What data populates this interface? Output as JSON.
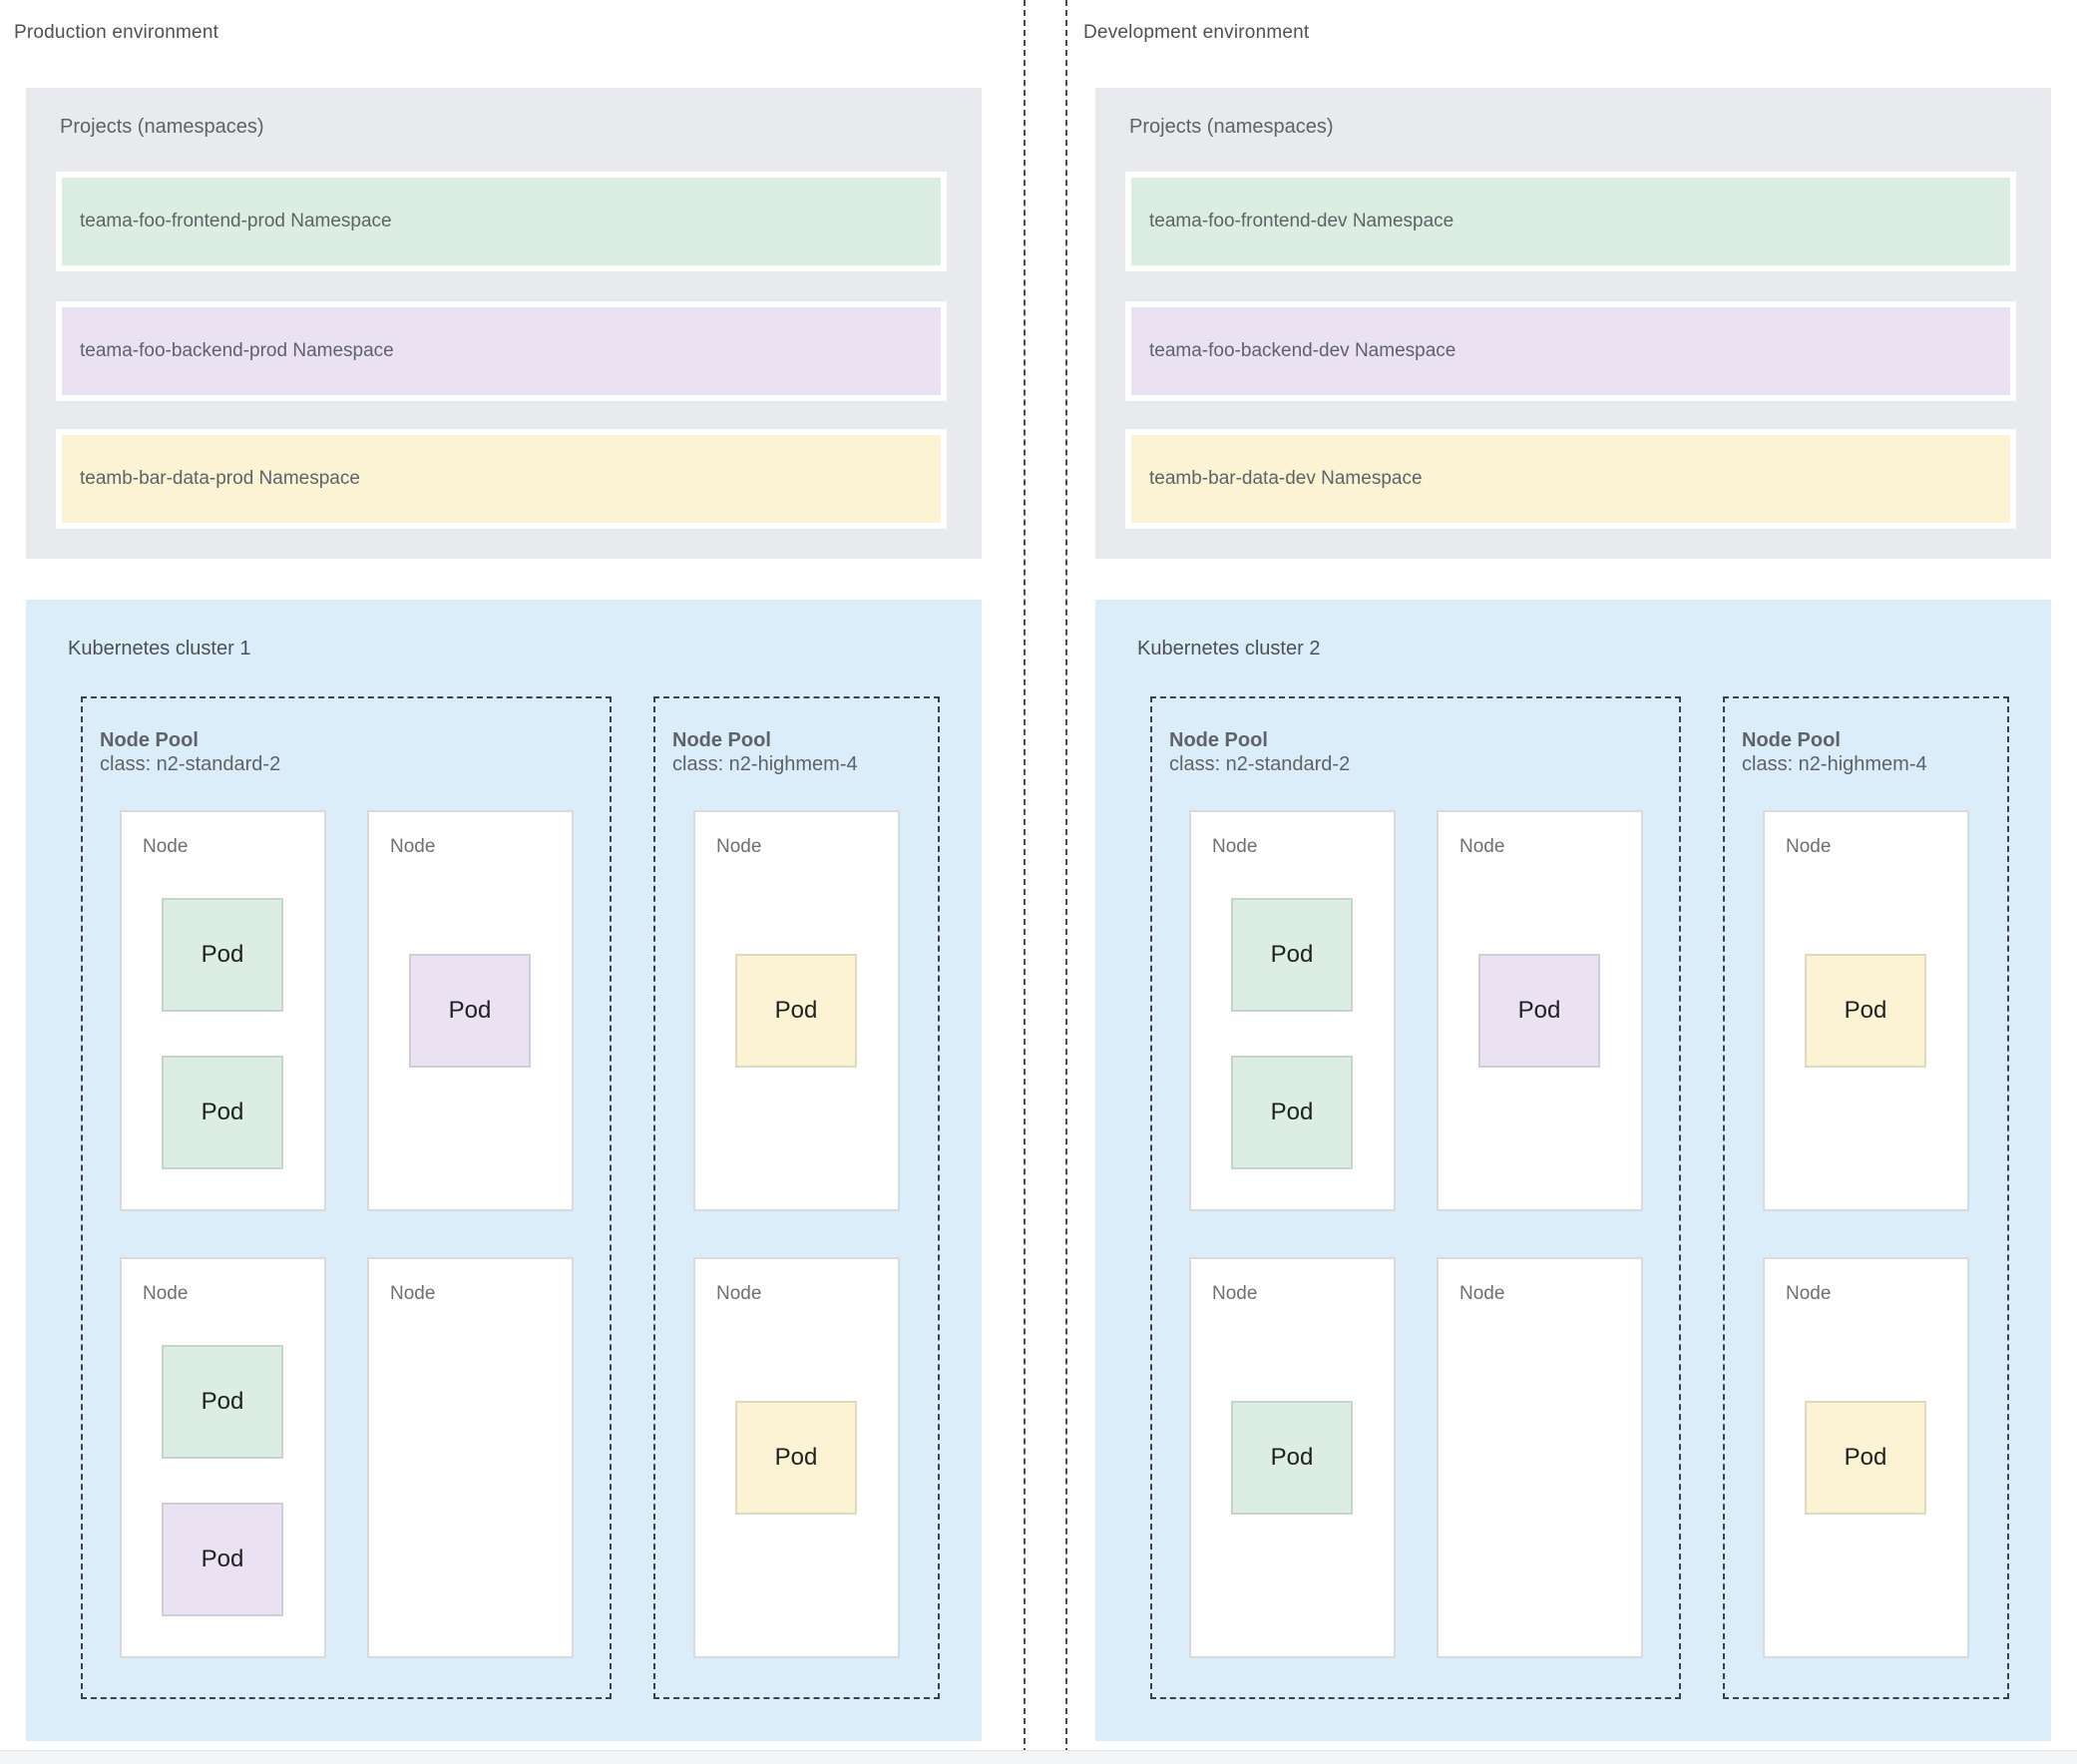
{
  "diagram": {
    "palette": {
      "projects_box_bg": "#e8eaed",
      "cluster_box_bg": "#daedf9",
      "frontend_green": "#dcede3",
      "backend_purple": "#eae1f3",
      "data_yellow": "#fcf3d4",
      "node_bg": "#ffffff",
      "dashed_border": "#3f4245",
      "text_gray": "#5f6368"
    },
    "environments": [
      {
        "label": "Production environment",
        "projects": {
          "title": "Projects (namespaces)",
          "namespaces": [
            {
              "label": "teama-foo-frontend-prod Namespace",
              "color": "#dcede3"
            },
            {
              "label": "teama-foo-backend-prod Namespace",
              "color": "#eae1f3"
            },
            {
              "label": "teamb-bar-data-prod Namespace",
              "color": "#fcf3d4"
            }
          ]
        },
        "cluster": {
          "title": "Kubernetes cluster 1",
          "node_pools": [
            {
              "title": "Node Pool",
              "node_class": "class: n2-standard-2",
              "nodes": [
                {
                  "label": "Node",
                  "pods": [
                    {
                      "label": "Pod",
                      "color": "#dcede3"
                    },
                    {
                      "label": "Pod",
                      "color": "#dcede3"
                    }
                  ]
                },
                {
                  "label": "Node",
                  "pods": [
                    {
                      "label": "Pod",
                      "color": "#eae1f3"
                    }
                  ]
                },
                {
                  "label": "Node",
                  "pods": [
                    {
                      "label": "Pod",
                      "color": "#dcede3"
                    },
                    {
                      "label": "Pod",
                      "color": "#eae1f3"
                    }
                  ]
                },
                {
                  "label": "Node",
                  "pods": []
                }
              ]
            },
            {
              "title": "Node Pool",
              "node_class": "class: n2-highmem-4",
              "nodes": [
                {
                  "label": "Node",
                  "pods": [
                    {
                      "label": "Pod",
                      "color": "#fcf3d4"
                    }
                  ]
                },
                {
                  "label": "Node",
                  "pods": [
                    {
                      "label": "Pod",
                      "color": "#fcf3d4"
                    }
                  ]
                }
              ]
            }
          ]
        }
      },
      {
        "label": "Development environment",
        "projects": {
          "title": "Projects (namespaces)",
          "namespaces": [
            {
              "label": "teama-foo-frontend-dev Namespace",
              "color": "#dcede3"
            },
            {
              "label": "teama-foo-backend-dev Namespace",
              "color": "#eae1f3"
            },
            {
              "label": "teamb-bar-data-dev Namespace",
              "color": "#fcf3d4"
            }
          ]
        },
        "cluster": {
          "title": "Kubernetes cluster 2",
          "node_pools": [
            {
              "title": "Node Pool",
              "node_class": "class: n2-standard-2",
              "nodes": [
                {
                  "label": "Node",
                  "pods": [
                    {
                      "label": "Pod",
                      "color": "#dcede3"
                    },
                    {
                      "label": "Pod",
                      "color": "#dcede3"
                    }
                  ]
                },
                {
                  "label": "Node",
                  "pods": [
                    {
                      "label": "Pod",
                      "color": "#eae1f3"
                    }
                  ]
                },
                {
                  "label": "Node",
                  "pods": [
                    {
                      "label": "Pod",
                      "color": "#dcede3"
                    }
                  ]
                },
                {
                  "label": "Node",
                  "pods": []
                }
              ]
            },
            {
              "title": "Node Pool",
              "node_class": "class: n2-highmem-4",
              "nodes": [
                {
                  "label": "Node",
                  "pods": [
                    {
                      "label": "Pod",
                      "color": "#fcf3d4"
                    }
                  ]
                },
                {
                  "label": "Node",
                  "pods": [
                    {
                      "label": "Pod",
                      "color": "#fcf3d4"
                    }
                  ]
                }
              ]
            }
          ]
        }
      }
    ]
  }
}
